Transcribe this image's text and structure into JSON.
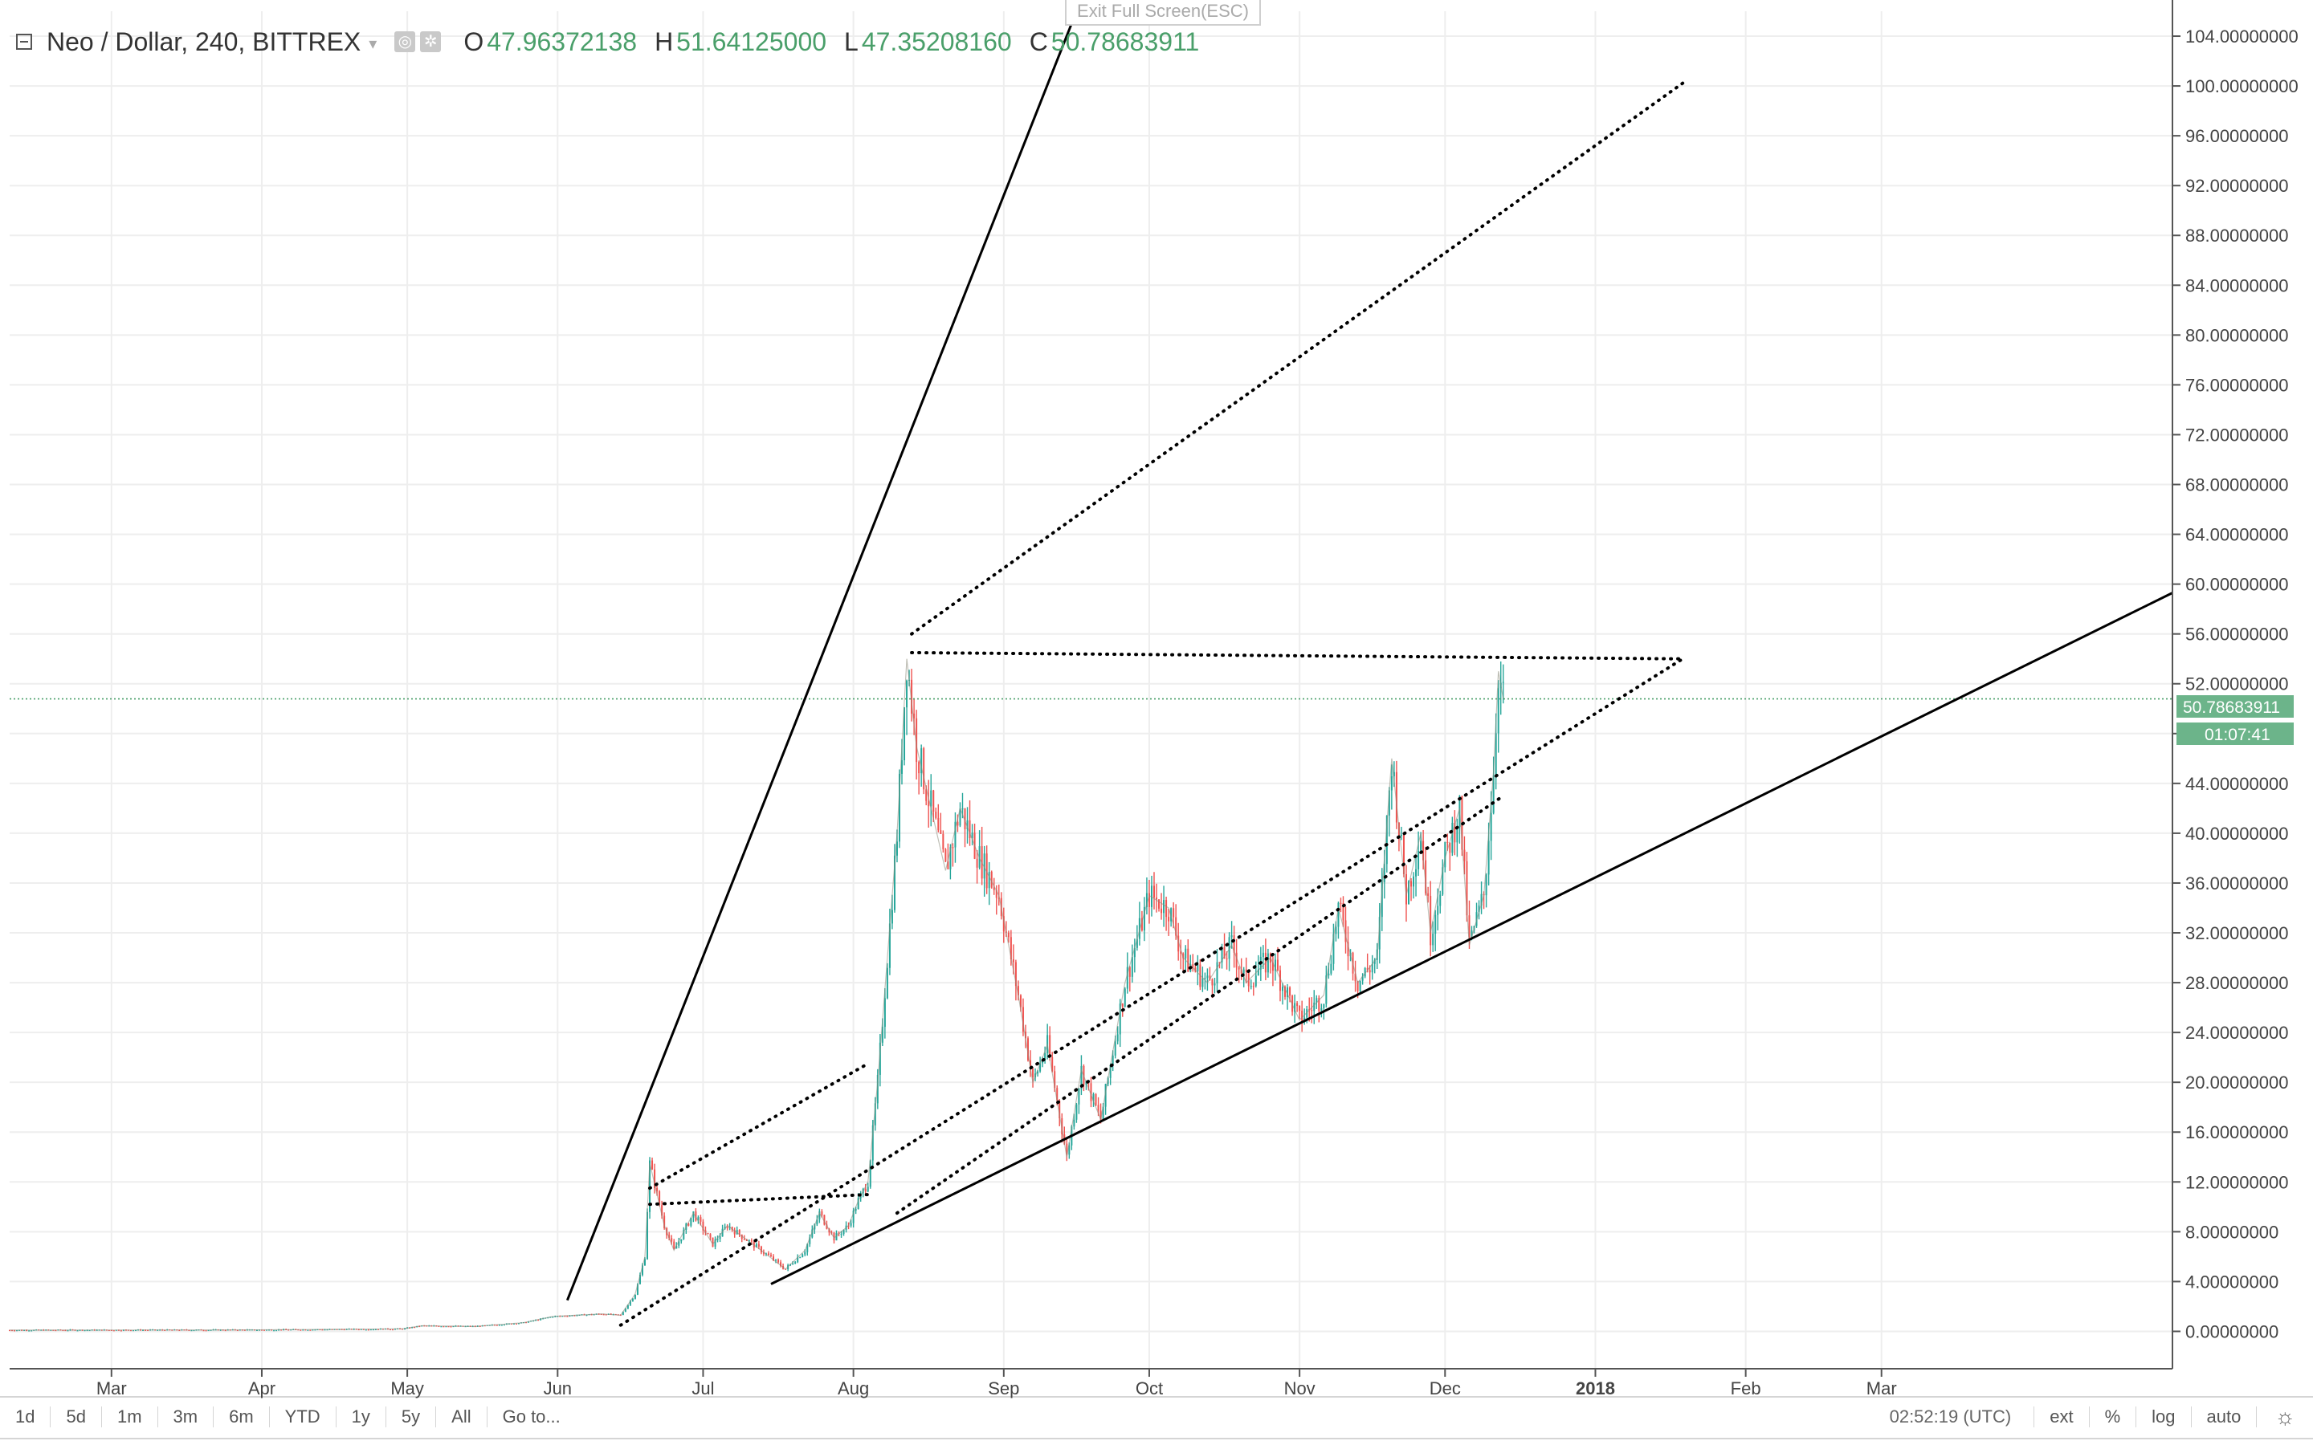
{
  "legend": {
    "symbol": "Neo / Dollar, 240, BITTREX",
    "open_key": "O",
    "open": "47.96372138",
    "high_key": "H",
    "high": "51.64125000",
    "low_key": "L",
    "low": "47.35208160",
    "close_key": "C",
    "close": "50.78683911"
  },
  "exit_fullscreen": "Exit Full Screen(ESC)",
  "price_label": "50.78683911",
  "countdown_label": "01:07:41",
  "toolbar": {
    "ranges": [
      "1d",
      "5d",
      "1m",
      "3m",
      "6m",
      "YTD",
      "1y",
      "5y",
      "All"
    ],
    "goto": "Go to...",
    "clock": "02:52:19 (UTC)",
    "ext": "ext",
    "percent": "%",
    "log": "log",
    "auto": "auto",
    "gear": "☼"
  },
  "colors": {
    "up": "#26a69a",
    "down": "#ef5350",
    "price_line": "#4a9f6a",
    "price_badge": "#6cb48a",
    "trendline": "#000000"
  },
  "chart_data": {
    "type": "candlestick",
    "x_axis": {
      "type": "date",
      "range": [
        "2017-02-08",
        "2018-04-30"
      ],
      "tick_labels": [
        {
          "date": "2017-03-01",
          "label": "Mar"
        },
        {
          "date": "2017-04-01",
          "label": "Apr"
        },
        {
          "date": "2017-05-01",
          "label": "May"
        },
        {
          "date": "2017-06-01",
          "label": "Jun"
        },
        {
          "date": "2017-07-01",
          "label": "Jul"
        },
        {
          "date": "2017-08-01",
          "label": "Aug"
        },
        {
          "date": "2017-09-01",
          "label": "Sep"
        },
        {
          "date": "2017-10-01",
          "label": "Oct"
        },
        {
          "date": "2017-11-01",
          "label": "Nov"
        },
        {
          "date": "2017-12-01",
          "label": "Dec"
        },
        {
          "date": "2018-01-01",
          "label": "2018"
        },
        {
          "date": "2018-02-01",
          "label": "Feb"
        },
        {
          "date": "2018-03-01",
          "label": "Mar"
        }
      ]
    },
    "y_axis": {
      "position": "right",
      "ylim": [
        -3,
        106
      ],
      "ticks": [
        0,
        4,
        8,
        12,
        16,
        20,
        24,
        28,
        32,
        36,
        40,
        44,
        48,
        52,
        56,
        60,
        64,
        68,
        72,
        76,
        80,
        84,
        88,
        92,
        96,
        100,
        104
      ],
      "tick_labels": [
        "0.00000000",
        "4.00000000",
        "8.00000000",
        "12.00000000",
        "16.00000000",
        "20.00000000",
        "24.00000000",
        "28.00000000",
        "32.00000000",
        "36.00000000",
        "40.00000000",
        "44.00000000",
        "48.00000000",
        "52.00000000",
        "56.00000000",
        "60.00000000",
        "64.00000000",
        "68.00000000",
        "72.00000000",
        "76.00000000",
        "80.00000000",
        "84.00000000",
        "88.00000000",
        "92.00000000",
        "96.00000000",
        "100.00000000",
        "104.00000000"
      ]
    },
    "grid": true,
    "last_price": 50.78683911,
    "price_path": [
      {
        "x": "2017-02-08",
        "y": 0.1
      },
      {
        "x": "2017-03-31",
        "y": 0.12
      },
      {
        "x": "2017-04-30",
        "y": 0.2
      },
      {
        "x": "2017-05-04",
        "y": 0.45
      },
      {
        "x": "2017-05-15",
        "y": 0.4
      },
      {
        "x": "2017-05-25",
        "y": 0.7
      },
      {
        "x": "2017-05-31",
        "y": 1.2
      },
      {
        "x": "2017-06-10",
        "y": 1.4
      },
      {
        "x": "2017-06-14",
        "y": 1.3
      },
      {
        "x": "2017-06-17",
        "y": 3.0
      },
      {
        "x": "2017-06-19",
        "y": 6.0
      },
      {
        "x": "2017-06-20",
        "y": 13.5
      },
      {
        "x": "2017-06-23",
        "y": 8.5
      },
      {
        "x": "2017-06-25",
        "y": 6.5
      },
      {
        "x": "2017-06-29",
        "y": 9.5
      },
      {
        "x": "2017-07-03",
        "y": 7.0
      },
      {
        "x": "2017-07-06",
        "y": 8.5
      },
      {
        "x": "2017-07-13",
        "y": 6.5
      },
      {
        "x": "2017-07-18",
        "y": 5.0
      },
      {
        "x": "2017-07-22",
        "y": 6.5
      },
      {
        "x": "2017-07-25",
        "y": 9.5
      },
      {
        "x": "2017-07-28",
        "y": 7.5
      },
      {
        "x": "2017-07-31",
        "y": 8.5
      },
      {
        "x": "2017-08-02",
        "y": 10.5
      },
      {
        "x": "2017-08-04",
        "y": 12.0
      },
      {
        "x": "2017-08-06",
        "y": 20.0
      },
      {
        "x": "2017-08-08",
        "y": 30.0
      },
      {
        "x": "2017-08-10",
        "y": 40.0
      },
      {
        "x": "2017-08-12",
        "y": 54.0
      },
      {
        "x": "2017-08-14",
        "y": 47.0
      },
      {
        "x": "2017-08-17",
        "y": 42.0
      },
      {
        "x": "2017-08-20",
        "y": 37.0
      },
      {
        "x": "2017-08-23",
        "y": 42.0
      },
      {
        "x": "2017-08-27",
        "y": 38.0
      },
      {
        "x": "2017-08-31",
        "y": 35.0
      },
      {
        "x": "2017-09-04",
        "y": 27.0
      },
      {
        "x": "2017-09-07",
        "y": 20.0
      },
      {
        "x": "2017-09-10",
        "y": 23.0
      },
      {
        "x": "2017-09-14",
        "y": 14.0
      },
      {
        "x": "2017-09-17",
        "y": 21.0
      },
      {
        "x": "2017-09-21",
        "y": 17.0
      },
      {
        "x": "2017-09-26",
        "y": 28.0
      },
      {
        "x": "2017-10-01",
        "y": 35.0
      },
      {
        "x": "2017-10-05",
        "y": 34.0
      },
      {
        "x": "2017-10-08",
        "y": 30.0
      },
      {
        "x": "2017-10-13",
        "y": 28.0
      },
      {
        "x": "2017-10-18",
        "y": 31.0
      },
      {
        "x": "2017-10-21",
        "y": 28.0
      },
      {
        "x": "2017-10-26",
        "y": 30.0
      },
      {
        "x": "2017-11-01",
        "y": 25.0
      },
      {
        "x": "2017-11-06",
        "y": 27.0
      },
      {
        "x": "2017-11-09",
        "y": 34.0
      },
      {
        "x": "2017-11-13",
        "y": 28.0
      },
      {
        "x": "2017-11-17",
        "y": 30.0
      },
      {
        "x": "2017-11-20",
        "y": 46.0
      },
      {
        "x": "2017-11-23",
        "y": 35.0
      },
      {
        "x": "2017-11-26",
        "y": 40.0
      },
      {
        "x": "2017-11-28",
        "y": 32.0
      },
      {
        "x": "2017-12-01",
        "y": 38.0
      },
      {
        "x": "2017-12-04",
        "y": 42.0
      },
      {
        "x": "2017-12-06",
        "y": 31.0
      },
      {
        "x": "2017-12-09",
        "y": 35.0
      },
      {
        "x": "2017-12-11",
        "y": 45.0
      },
      {
        "x": "2017-12-12",
        "y": 53.0
      },
      {
        "x": "2017-12-13",
        "y": 50.8
      }
    ],
    "trendlines": [
      {
        "style": "solid",
        "points": [
          {
            "x": "2017-06-03",
            "y": 2.5
          },
          {
            "x": "2017-09-16",
            "y": 106.0
          }
        ]
      },
      {
        "style": "solid",
        "points": [
          {
            "x": "2017-07-15",
            "y": 3.8
          },
          {
            "x": "2018-04-30",
            "y": 59.3
          }
        ]
      },
      {
        "style": "dotted",
        "points": [
          {
            "x": "2017-06-14",
            "y": 0.5
          },
          {
            "x": "2018-01-19",
            "y": 54.0
          }
        ]
      },
      {
        "style": "dotted",
        "points": [
          {
            "x": "2017-08-13",
            "y": 54.5
          },
          {
            "x": "2018-01-19",
            "y": 54.0
          }
        ]
      },
      {
        "style": "dotted",
        "points": [
          {
            "x": "2017-08-13",
            "y": 56.0
          },
          {
            "x": "2018-01-20",
            "y": 100.5
          }
        ]
      },
      {
        "style": "dotted",
        "points": [
          {
            "x": "2017-08-10",
            "y": 9.5
          },
          {
            "x": "2017-12-13",
            "y": 43.0
          }
        ]
      },
      {
        "style": "dotted",
        "points": [
          {
            "x": "2017-06-20",
            "y": 11.5
          },
          {
            "x": "2017-08-04",
            "y": 21.5
          }
        ]
      },
      {
        "style": "dotted",
        "points": [
          {
            "x": "2017-06-20",
            "y": 10.2
          },
          {
            "x": "2017-08-05",
            "y": 11.0
          }
        ]
      }
    ]
  }
}
